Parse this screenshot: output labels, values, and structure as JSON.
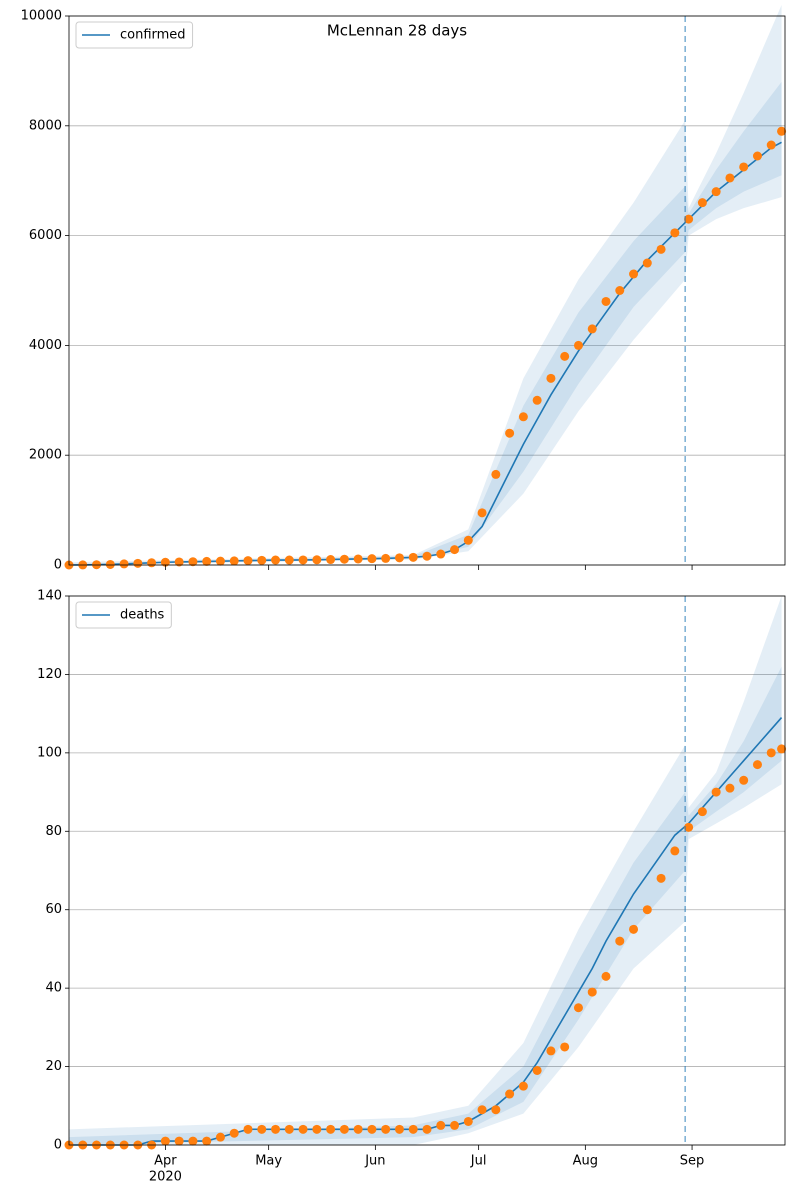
{
  "title": "McLennan 28 days",
  "chart_data": [
    {
      "type": "line",
      "ylim": [
        0,
        10000
      ],
      "yticks": [
        0,
        2000,
        4000,
        6000,
        8000,
        10000
      ],
      "grid": true,
      "legend": "upper left",
      "xlim": [
        "2020-03-04",
        "2020-09-28"
      ],
      "vline": "2020-08-30",
      "xtick_labels": false,
      "xticks": [
        "2020-04-01",
        "2020-05-01",
        "2020-06-01",
        "2020-07-01",
        "2020-08-01",
        "2020-09-01"
      ],
      "x": [
        "2020-03-04",
        "2020-03-08",
        "2020-03-12",
        "2020-03-16",
        "2020-03-20",
        "2020-03-24",
        "2020-03-28",
        "2020-04-01",
        "2020-04-05",
        "2020-04-09",
        "2020-04-13",
        "2020-04-17",
        "2020-04-21",
        "2020-04-25",
        "2020-04-29",
        "2020-05-03",
        "2020-05-07",
        "2020-05-11",
        "2020-05-15",
        "2020-05-19",
        "2020-05-23",
        "2020-05-27",
        "2020-05-31",
        "2020-06-04",
        "2020-06-08",
        "2020-06-12",
        "2020-06-16",
        "2020-06-20",
        "2020-06-24",
        "2020-06-28",
        "2020-07-02",
        "2020-07-06",
        "2020-07-10",
        "2020-07-14",
        "2020-07-18",
        "2020-07-22",
        "2020-07-26",
        "2020-07-30",
        "2020-08-03",
        "2020-08-07",
        "2020-08-11",
        "2020-08-15",
        "2020-08-19",
        "2020-08-23",
        "2020-08-27",
        "2020-08-31",
        "2020-09-04",
        "2020-09-08",
        "2020-09-12",
        "2020-09-16",
        "2020-09-20",
        "2020-09-24",
        "2020-09-27"
      ],
      "series": [
        {
          "name": "confirmed",
          "color": "#1f77b4",
          "values": [
            0,
            2,
            5,
            10,
            20,
            30,
            40,
            50,
            55,
            60,
            65,
            70,
            75,
            80,
            85,
            90,
            90,
            92,
            95,
            100,
            105,
            110,
            115,
            120,
            130,
            140,
            160,
            200,
            280,
            430,
            700,
            1200,
            1700,
            2200,
            2650,
            3100,
            3500,
            3900,
            4250,
            4600,
            4950,
            5250,
            5550,
            5800,
            6050,
            6300,
            6550,
            6800,
            7000,
            7200,
            7400,
            7600,
            7700
          ]
        }
      ],
      "observed": {
        "color": "#ff7f0e",
        "values": [
          0,
          2,
          5,
          10,
          20,
          30,
          40,
          50,
          55,
          60,
          65,
          70,
          75,
          80,
          85,
          90,
          90,
          92,
          95,
          100,
          105,
          110,
          115,
          120,
          130,
          140,
          160,
          200,
          280,
          450,
          950,
          1650,
          2400,
          2700,
          3000,
          3400,
          3800,
          4000,
          4300,
          4800,
          5000,
          5300,
          5500,
          5750,
          6050,
          6300,
          6600,
          6800,
          7050,
          7250,
          7450,
          7650,
          7900
        ]
      },
      "bands": {
        "color": "#1f77b4",
        "x": [
          "2020-03-04",
          "2020-06-12",
          "2020-06-28",
          "2020-07-14",
          "2020-07-30",
          "2020-08-15",
          "2020-08-30",
          "2020-08-31",
          "2020-09-08",
          "2020-09-16",
          "2020-09-27"
        ],
        "ranges": [
          {
            "lower": [
              0,
              100,
              250,
              1300,
              2800,
              4100,
              5200,
              6000,
              6300,
              6500,
              6700
            ],
            "upper": [
              50,
              180,
              650,
              3400,
              5200,
              6600,
              8100,
              6500,
              7500,
              8600,
              10200
            ]
          },
          {
            "lower": [
              0,
              110,
              330,
              1700,
              3300,
              4700,
              5700,
              6100,
              6500,
              6800,
              7100
            ],
            "upper": [
              20,
              160,
              550,
              2900,
              4600,
              5900,
              6900,
              6400,
              7200,
              7900,
              8800
            ]
          }
        ]
      }
    },
    {
      "type": "line",
      "ylim": [
        0,
        140
      ],
      "yticks": [
        0,
        20,
        40,
        60,
        80,
        100,
        120,
        140
      ],
      "grid": true,
      "legend": "upper left",
      "xlim": [
        "2020-03-04",
        "2020-09-28"
      ],
      "vline": "2020-08-30",
      "xtick_labels": true,
      "xticks": [
        {
          "value": "2020-04-01",
          "label": "Apr",
          "sublabel": "2020"
        },
        {
          "value": "2020-05-01",
          "label": "May"
        },
        {
          "value": "2020-06-01",
          "label": "Jun"
        },
        {
          "value": "2020-07-01",
          "label": "Jul"
        },
        {
          "value": "2020-08-01",
          "label": "Aug"
        },
        {
          "value": "2020-09-01",
          "label": "Sep"
        }
      ],
      "x": [
        "2020-03-04",
        "2020-03-08",
        "2020-03-12",
        "2020-03-16",
        "2020-03-20",
        "2020-03-24",
        "2020-03-28",
        "2020-04-01",
        "2020-04-05",
        "2020-04-09",
        "2020-04-13",
        "2020-04-17",
        "2020-04-21",
        "2020-04-25",
        "2020-04-29",
        "2020-05-03",
        "2020-05-07",
        "2020-05-11",
        "2020-05-15",
        "2020-05-19",
        "2020-05-23",
        "2020-05-27",
        "2020-05-31",
        "2020-06-04",
        "2020-06-08",
        "2020-06-12",
        "2020-06-16",
        "2020-06-20",
        "2020-06-24",
        "2020-06-28",
        "2020-07-02",
        "2020-07-06",
        "2020-07-10",
        "2020-07-14",
        "2020-07-18",
        "2020-07-22",
        "2020-07-26",
        "2020-07-30",
        "2020-08-03",
        "2020-08-07",
        "2020-08-11",
        "2020-08-15",
        "2020-08-19",
        "2020-08-23",
        "2020-08-27",
        "2020-08-31",
        "2020-09-04",
        "2020-09-08",
        "2020-09-12",
        "2020-09-16",
        "2020-09-20",
        "2020-09-24",
        "2020-09-27"
      ],
      "series": [
        {
          "name": "deaths",
          "color": "#1f77b4",
          "values": [
            0,
            0,
            0,
            0,
            0,
            0,
            1,
            1,
            1,
            1,
            1,
            2,
            3,
            4,
            4,
            4,
            4,
            4,
            4,
            4,
            4,
            4,
            4,
            4,
            4,
            4,
            4,
            5,
            5,
            6,
            8,
            10,
            13,
            16,
            21,
            27,
            33,
            39,
            45,
            52,
            58,
            64,
            69,
            74,
            79,
            82,
            86,
            90,
            94,
            98,
            102,
            106,
            109
          ]
        }
      ],
      "observed": {
        "color": "#ff7f0e",
        "values": [
          0,
          0,
          0,
          0,
          0,
          0,
          0,
          1,
          1,
          1,
          1,
          2,
          3,
          4,
          4,
          4,
          4,
          4,
          4,
          4,
          4,
          4,
          4,
          4,
          4,
          4,
          4,
          5,
          5,
          6,
          9,
          9,
          13,
          15,
          19,
          24,
          25,
          35,
          39,
          43,
          52,
          55,
          60,
          68,
          75,
          81,
          85,
          90,
          91,
          93,
          97,
          100,
          101
        ]
      },
      "bands": {
        "color": "#1f77b4",
        "x": [
          "2020-03-04",
          "2020-06-12",
          "2020-06-28",
          "2020-07-14",
          "2020-07-30",
          "2020-08-15",
          "2020-08-30",
          "2020-08-31",
          "2020-09-08",
          "2020-09-16",
          "2020-09-27"
        ],
        "ranges": [
          {
            "lower": [
              0,
              0,
              3,
              8,
              25,
              45,
              57,
              78,
              82,
              86,
              92
            ],
            "upper": [
              4,
              7,
              10,
              26,
              55,
              80,
              102,
              86,
              95,
              113,
              140
            ]
          },
          {
            "lower": [
              0,
              2,
              4,
              11,
              32,
              55,
              70,
              80,
              85,
              90,
              98
            ],
            "upper": [
              2,
              5,
              8,
              20,
              47,
              72,
              90,
              84,
              92,
              103,
              122
            ]
          }
        ]
      }
    }
  ]
}
